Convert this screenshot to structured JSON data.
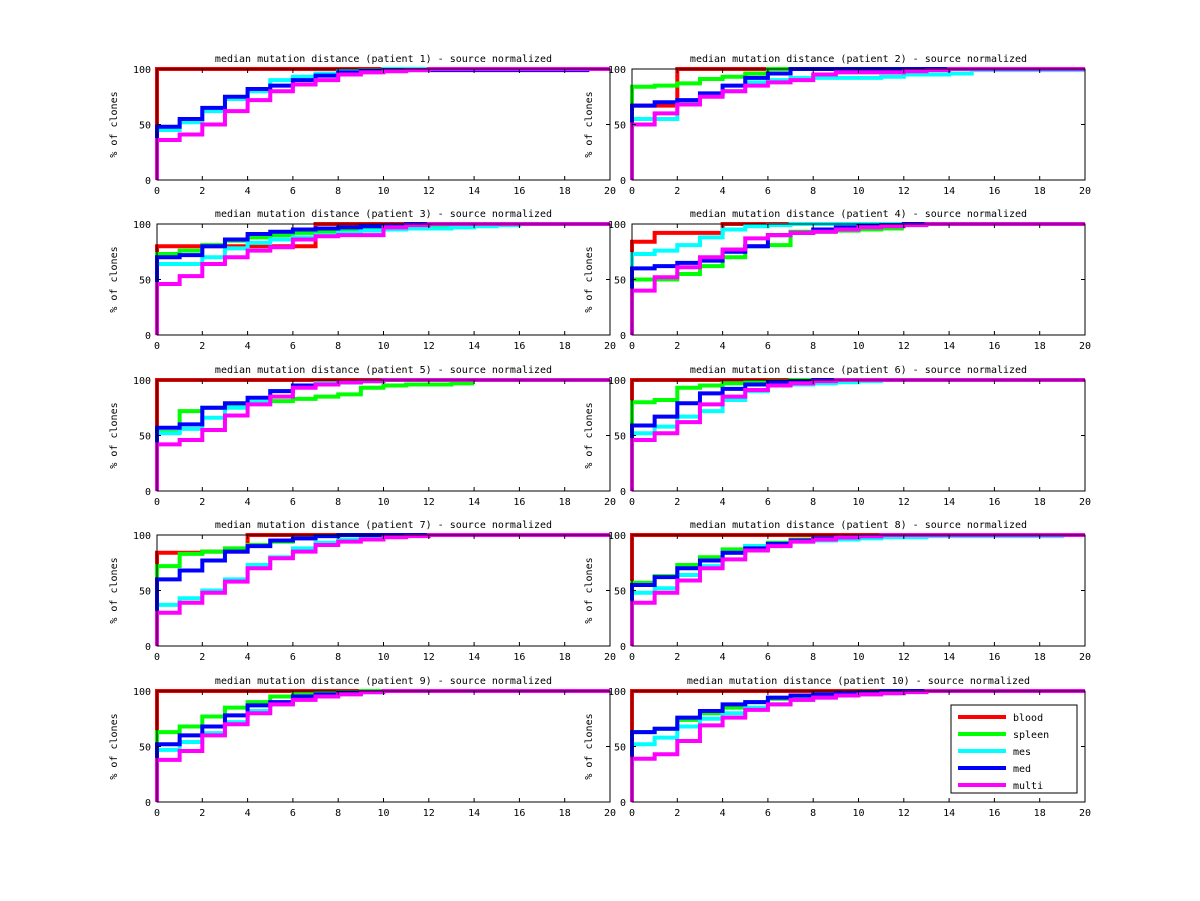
{
  "colors": {
    "blood": "#ff0000",
    "spleen": "#00ff00",
    "mes": "#00ffff",
    "med": "#0000ff",
    "multi": "#ff00ff"
  },
  "legend": [
    "blood",
    "spleen",
    "mes",
    "med",
    "multi"
  ],
  "chart_data": [
    {
      "type": "line",
      "title": "median mutation distance (patient 1) - source normalized",
      "xlabel": "",
      "ylabel": "% of clones",
      "xlim": [
        0,
        20
      ],
      "ylim": [
        0,
        100
      ],
      "series": [
        {
          "name": "blood",
          "values": [
            100
          ]
        },
        {
          "name": "mes",
          "values": [
            45,
            52,
            62,
            73,
            80,
            90,
            93,
            96,
            98,
            99,
            100
          ]
        },
        {
          "name": "med",
          "values": [
            48,
            55,
            65,
            75,
            82,
            85,
            90,
            94,
            97,
            98,
            99,
            99,
            99,
            99,
            99,
            99,
            99,
            99,
            99,
            100
          ]
        },
        {
          "name": "multi",
          "values": [
            36,
            41,
            50,
            62,
            72,
            80,
            86,
            90,
            95,
            97,
            98,
            99,
            100
          ]
        }
      ]
    },
    {
      "type": "line",
      "title": "median mutation distance (patient 2) - source normalized",
      "xlabel": "",
      "ylabel": "% of clones",
      "xlim": [
        0,
        20
      ],
      "ylim": [
        0,
        100
      ],
      "series": [
        {
          "name": "blood",
          "values": [
            67,
            67,
            100
          ]
        },
        {
          "name": "spleen",
          "values": [
            84,
            85,
            87,
            91,
            93,
            96,
            100
          ]
        },
        {
          "name": "mes",
          "values": [
            55,
            55,
            70,
            77,
            80,
            88,
            90,
            92,
            92,
            92,
            92,
            93,
            95,
            95,
            96,
            99,
            99,
            99,
            99,
            99
          ]
        },
        {
          "name": "med",
          "values": [
            67,
            70,
            72,
            78,
            85,
            92,
            96,
            100
          ]
        },
        {
          "name": "multi",
          "values": [
            50,
            60,
            68,
            75,
            80,
            85,
            88,
            90,
            95,
            97,
            97,
            97,
            98,
            99,
            100
          ]
        }
      ]
    },
    {
      "type": "line",
      "title": "median mutation distance (patient 3) - source normalized",
      "xlabel": "",
      "ylabel": "% of clones",
      "xlim": [
        0,
        20
      ],
      "ylim": [
        0,
        100
      ],
      "series": [
        {
          "name": "blood",
          "values": [
            80,
            80,
            80,
            80,
            80,
            80,
            80,
            100
          ]
        },
        {
          "name": "spleen",
          "values": [
            73,
            76,
            81,
            85,
            88,
            90,
            92,
            93,
            95,
            96,
            98,
            98,
            99,
            99,
            100
          ]
        },
        {
          "name": "mes",
          "values": [
            64,
            64,
            70,
            78,
            83,
            86,
            88,
            90,
            92,
            94,
            95,
            96,
            96,
            97,
            98,
            99,
            100
          ]
        },
        {
          "name": "med",
          "values": [
            70,
            72,
            80,
            86,
            91,
            93,
            95,
            96,
            97,
            98,
            99,
            100
          ]
        },
        {
          "name": "multi",
          "values": [
            46,
            53,
            64,
            70,
            76,
            79,
            86,
            89,
            90,
            90,
            97,
            99,
            100
          ]
        }
      ]
    },
    {
      "type": "line",
      "title": "median mutation distance (patient 4) - source normalized",
      "xlabel": "",
      "ylabel": "% of clones",
      "xlim": [
        0,
        20
      ],
      "ylim": [
        0,
        100
      ],
      "series": [
        {
          "name": "blood",
          "values": [
            84,
            92,
            92,
            92,
            100
          ]
        },
        {
          "name": "spleen",
          "values": [
            50,
            50,
            55,
            62,
            70,
            80,
            81,
            93,
            93,
            94,
            95,
            96
          ],
          "end": 12
        },
        {
          "name": "mes",
          "values": [
            73,
            76,
            81,
            88,
            95,
            98,
            99,
            100
          ]
        },
        {
          "name": "med",
          "values": [
            60,
            62,
            65,
            67,
            75,
            80,
            90,
            92,
            95,
            97,
            98,
            99,
            100
          ]
        },
        {
          "name": "multi",
          "values": [
            40,
            52,
            61,
            70,
            77,
            87,
            90,
            92,
            93,
            95,
            97,
            98,
            99,
            100
          ]
        }
      ]
    },
    {
      "type": "line",
      "title": "median mutation distance (patient 5) - source normalized",
      "xlabel": "",
      "ylabel": "% of clones",
      "xlim": [
        0,
        20
      ],
      "ylim": [
        0,
        100
      ],
      "series": [
        {
          "name": "blood",
          "values": [
            100
          ]
        },
        {
          "name": "spleen",
          "values": [
            53,
            72,
            75,
            77,
            80,
            81,
            83,
            85,
            87,
            93,
            95,
            96,
            96,
            97
          ],
          "end": 14
        },
        {
          "name": "mes",
          "values": [
            52,
            56,
            66,
            75,
            80,
            90,
            95,
            97,
            98,
            99,
            100
          ]
        },
        {
          "name": "med",
          "values": [
            57,
            60,
            75,
            79,
            84,
            90,
            95,
            96,
            98,
            99,
            100
          ]
        },
        {
          "name": "multi",
          "values": [
            42,
            46,
            55,
            68,
            78,
            85,
            93,
            96,
            98,
            99,
            100
          ]
        }
      ]
    },
    {
      "type": "line",
      "title": "median mutation distance (patient 6) - source normalized",
      "xlabel": "",
      "ylabel": "% of clones",
      "xlim": [
        0,
        20
      ],
      "ylim": [
        0,
        100
      ],
      "series": [
        {
          "name": "blood",
          "values": [
            100
          ]
        },
        {
          "name": "spleen",
          "values": [
            80,
            82,
            93,
            95,
            97,
            98,
            99,
            100
          ]
        },
        {
          "name": "mes",
          "values": [
            52,
            58,
            67,
            72,
            82,
            90,
            95,
            96,
            97,
            98,
            99,
            100
          ]
        },
        {
          "name": "med",
          "values": [
            59,
            67,
            79,
            88,
            92,
            96,
            98,
            99,
            100
          ]
        },
        {
          "name": "multi",
          "values": [
            46,
            52,
            62,
            78,
            85,
            91,
            95,
            97,
            99,
            100
          ]
        }
      ]
    },
    {
      "type": "line",
      "title": "median mutation distance (patient 7) - source normalized",
      "xlabel": "",
      "ylabel": "% of clones",
      "xlim": [
        0,
        20
      ],
      "ylim": [
        0,
        100
      ],
      "series": [
        {
          "name": "blood",
          "values": [
            84,
            84,
            85,
            85,
            100
          ]
        },
        {
          "name": "spleen",
          "values": [
            72,
            83,
            85,
            88,
            91,
            94,
            97,
            99,
            100
          ]
        },
        {
          "name": "mes",
          "values": [
            37,
            43,
            50,
            60,
            73,
            80,
            88,
            93,
            96,
            98,
            99,
            100
          ]
        },
        {
          "name": "med",
          "values": [
            60,
            68,
            77,
            85,
            90,
            95,
            97,
            99,
            100
          ]
        },
        {
          "name": "multi",
          "values": [
            30,
            39,
            48,
            58,
            70,
            79,
            85,
            91,
            94,
            96,
            98,
            99,
            100
          ]
        }
      ]
    },
    {
      "type": "line",
      "title": "median mutation distance (patient 8) - source normalized",
      "xlabel": "",
      "ylabel": "% of clones",
      "xlim": [
        0,
        20
      ],
      "ylim": [
        0,
        100
      ],
      "series": [
        {
          "name": "blood",
          "values": [
            100
          ]
        },
        {
          "name": "spleen",
          "values": [
            57,
            63,
            73,
            80,
            87,
            90,
            93,
            96,
            97,
            98,
            99,
            100
          ]
        },
        {
          "name": "mes",
          "values": [
            48,
            52,
            64,
            72,
            84,
            90,
            92,
            94,
            95,
            96,
            97,
            98,
            98,
            99,
            99,
            99,
            99,
            99,
            99,
            100
          ]
        },
        {
          "name": "med",
          "values": [
            55,
            62,
            70,
            77,
            84,
            88,
            92,
            95,
            97,
            98,
            99,
            100
          ]
        },
        {
          "name": "multi",
          "values": [
            39,
            48,
            59,
            70,
            78,
            86,
            90,
            94,
            96,
            98,
            99,
            100
          ]
        }
      ]
    },
    {
      "type": "line",
      "title": "median mutation distance (patient 9) - source normalized",
      "xlabel": "",
      "ylabel": "% of clones",
      "xlim": [
        0,
        20
      ],
      "ylim": [
        0,
        100
      ],
      "series": [
        {
          "name": "blood",
          "values": [
            100
          ]
        },
        {
          "name": "spleen",
          "values": [
            63,
            68,
            77,
            85,
            90,
            95,
            97,
            98,
            99,
            100
          ]
        },
        {
          "name": "mes",
          "values": [
            47,
            54,
            62,
            72,
            82,
            88,
            93,
            96,
            98,
            99,
            100
          ]
        },
        {
          "name": "med",
          "values": [
            52,
            60,
            68,
            78,
            87,
            90,
            95,
            97,
            98,
            99,
            100
          ]
        },
        {
          "name": "multi",
          "values": [
            38,
            46,
            60,
            70,
            80,
            88,
            92,
            95,
            97,
            99,
            100
          ]
        }
      ]
    },
    {
      "type": "line",
      "title": "median mutation distance (patient 10) - source normalized",
      "xlabel": "",
      "ylabel": "% of clones",
      "xlim": [
        0,
        20
      ],
      "ylim": [
        0,
        100
      ],
      "legend_position": "bottom-right",
      "series": [
        {
          "name": "blood",
          "values": [
            100
          ]
        },
        {
          "name": "spleen",
          "values": [
            63,
            66,
            74,
            80,
            85,
            90,
            93,
            95,
            97,
            98,
            99,
            100
          ]
        },
        {
          "name": "mes",
          "values": [
            52,
            58,
            68,
            75,
            80,
            85,
            88,
            92,
            94,
            96,
            97,
            98,
            99,
            100
          ]
        },
        {
          "name": "med",
          "values": [
            63,
            66,
            76,
            82,
            88,
            90,
            94,
            96,
            97,
            98,
            99,
            100
          ]
        },
        {
          "name": "multi",
          "values": [
            39,
            43,
            55,
            69,
            76,
            83,
            88,
            92,
            94,
            96,
            97,
            98,
            99,
            100
          ]
        }
      ]
    }
  ]
}
